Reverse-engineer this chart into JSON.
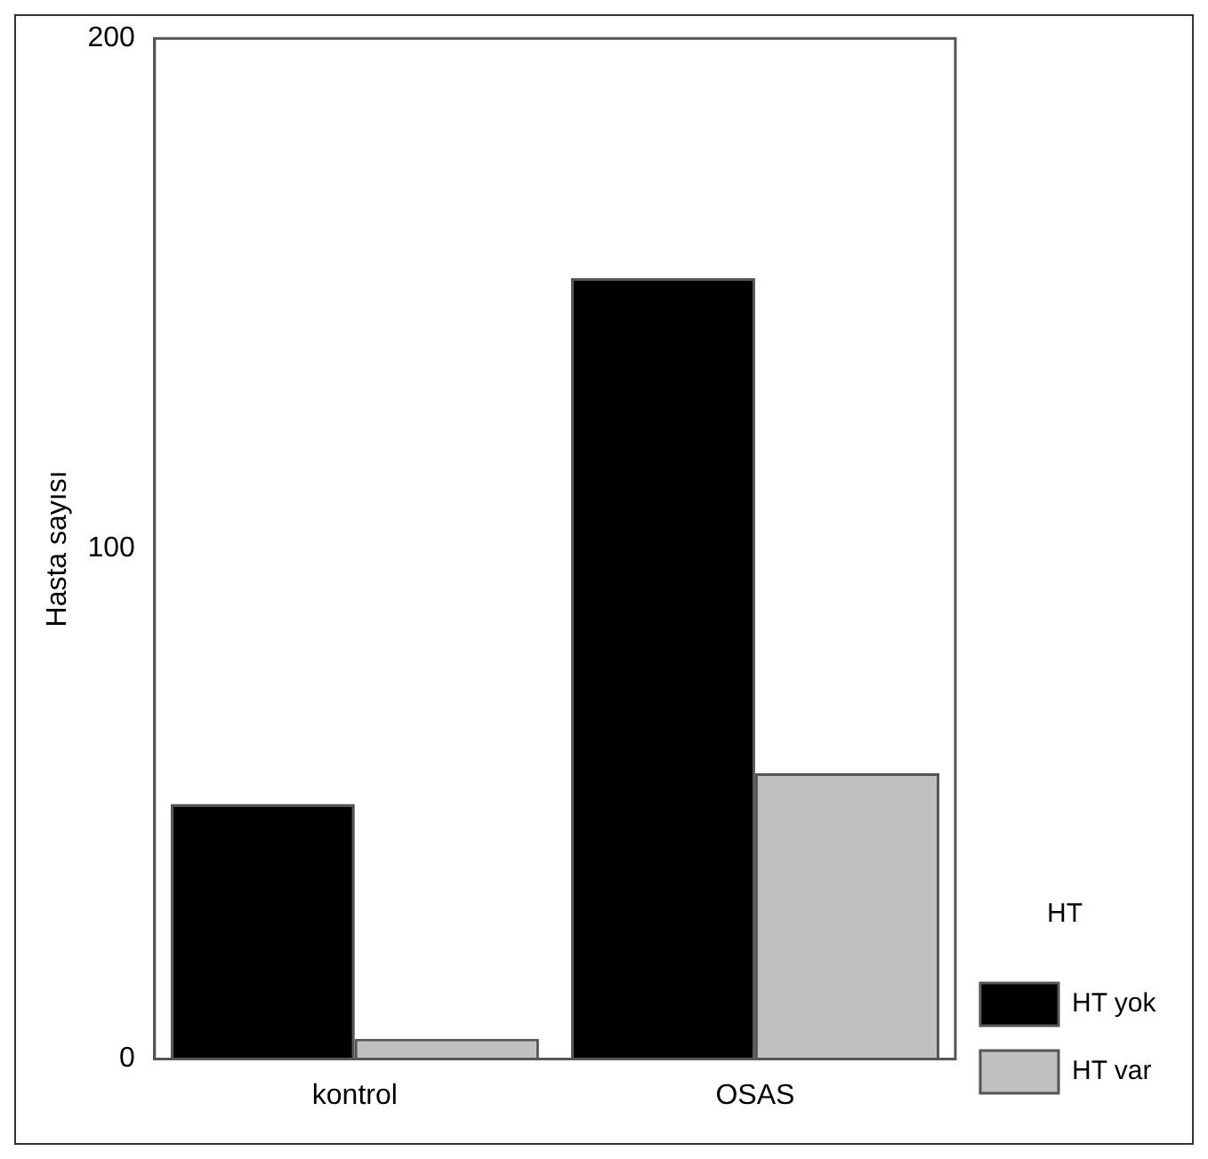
{
  "chart_data": {
    "type": "bar",
    "ylabel": "Hasta sayısı",
    "legend_title": "HT",
    "categories": [
      "kontrol",
      "OSAS"
    ],
    "series": [
      {
        "name": "HT yok",
        "color": "#000000",
        "values": [
          50,
          153
        ]
      },
      {
        "name": "HT var",
        "color": "#c0c0c0",
        "values": [
          4,
          56
        ]
      }
    ],
    "ylim": [
      0,
      200
    ],
    "yticks": [
      0,
      100,
      200
    ],
    "grid": false,
    "legend": "right"
  }
}
